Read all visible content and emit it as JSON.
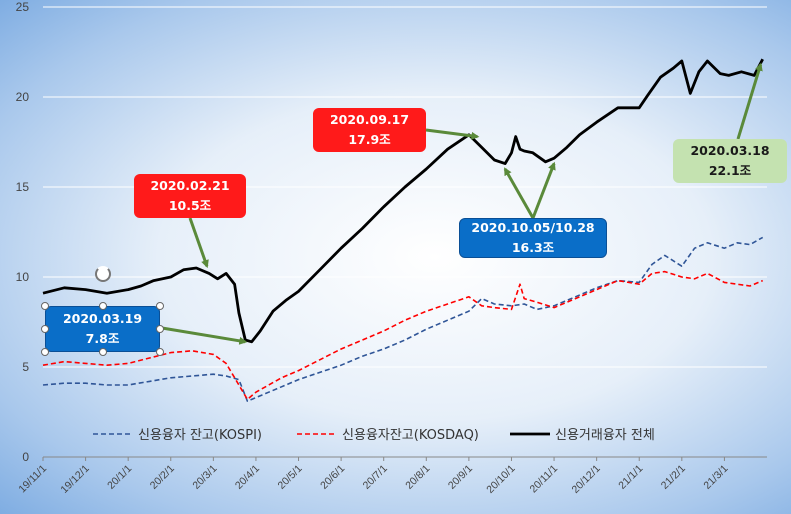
{
  "chart_data": {
    "type": "line",
    "ylim": [
      0,
      25
    ],
    "yticks": [
      0,
      5,
      10,
      15,
      20,
      25
    ],
    "xlim": [
      0,
      17
    ],
    "xtick_labels": [
      "19/11/1",
      "19/12/1",
      "20/1/1",
      "20/2/1",
      "20/3/1",
      "20/4/1",
      "20/5/1",
      "20/6/1",
      "20/7/1",
      "20/8/1",
      "20/9/1",
      "20/10/1",
      "20/11/1",
      "20/12/1",
      "21/1/1",
      "21/2/1",
      "21/3/1"
    ],
    "grid": true,
    "legend_position": "bottom",
    "series": [
      {
        "name": "신용융자 잔고(KOSPI)",
        "color": "#2f5597",
        "style": "dashed",
        "x": [
          0,
          0.5,
          1,
          1.5,
          2,
          2.5,
          3,
          3.5,
          4,
          4.3,
          4.6,
          4.8,
          5,
          5.3,
          5.6,
          6,
          6.5,
          7,
          7.5,
          8,
          8.5,
          9,
          9.5,
          10,
          10.3,
          10.6,
          11,
          11.3,
          11.6,
          12,
          12.5,
          13,
          13.5,
          14,
          14.3,
          14.6,
          15,
          15.3,
          15.6,
          16,
          16.3,
          16.6,
          16.9
        ],
        "values": [
          4.0,
          4.1,
          4.1,
          4.0,
          4.0,
          4.2,
          4.4,
          4.5,
          4.6,
          4.5,
          4.3,
          3.1,
          3.3,
          3.6,
          3.9,
          4.3,
          4.7,
          5.1,
          5.6,
          6.0,
          6.5,
          7.1,
          7.6,
          8.1,
          8.8,
          8.5,
          8.4,
          8.5,
          8.2,
          8.4,
          8.9,
          9.4,
          9.8,
          9.7,
          10.7,
          11.2,
          10.6,
          11.6,
          11.9,
          11.6,
          11.9,
          11.8,
          12.2
        ]
      },
      {
        "name": "신용융자잔고(KOSDAQ)",
        "color": "#ff0000",
        "style": "dashed",
        "x": [
          0,
          0.5,
          1,
          1.5,
          2,
          2.5,
          3,
          3.5,
          4,
          4.3,
          4.6,
          4.8,
          5,
          5.3,
          5.6,
          6,
          6.5,
          7,
          7.5,
          8,
          8.5,
          9,
          9.5,
          10,
          10.3,
          10.6,
          11,
          11.2,
          11.3,
          11.6,
          12,
          12.5,
          13,
          13.5,
          14,
          14.3,
          14.6,
          15,
          15.3,
          15.6,
          16,
          16.3,
          16.6,
          16.9
        ],
        "values": [
          5.1,
          5.3,
          5.2,
          5.1,
          5.2,
          5.5,
          5.8,
          5.9,
          5.7,
          5.2,
          4.0,
          3.2,
          3.6,
          4.0,
          4.4,
          4.8,
          5.4,
          6.0,
          6.5,
          7.0,
          7.6,
          8.1,
          8.5,
          8.9,
          8.4,
          8.3,
          8.2,
          9.6,
          8.8,
          8.6,
          8.3,
          8.8,
          9.3,
          9.8,
          9.6,
          10.2,
          10.3,
          10.0,
          9.9,
          10.2,
          9.7,
          9.6,
          9.5,
          9.8
        ]
      },
      {
        "name": "신용거래융자 전체",
        "color": "#000000",
        "style": "solid",
        "x": [
          0,
          0.5,
          1,
          1.5,
          2,
          2.3,
          2.6,
          3,
          3.3,
          3.6,
          3.9,
          4.1,
          4.3,
          4.5,
          4.6,
          4.75,
          4.9,
          5.1,
          5.4,
          5.7,
          6,
          6.5,
          7,
          7.5,
          8,
          8.5,
          9,
          9.5,
          10,
          10.3,
          10.6,
          10.85,
          11,
          11.1,
          11.2,
          11.3,
          11.5,
          11.8,
          12,
          12.3,
          12.6,
          13,
          13.5,
          14,
          14.2,
          14.5,
          14.8,
          15,
          15.2,
          15.4,
          15.6,
          15.9,
          16.1,
          16.4,
          16.7,
          16.9
        ],
        "values": [
          9.1,
          9.4,
          9.3,
          9.1,
          9.3,
          9.5,
          9.8,
          10.0,
          10.4,
          10.5,
          10.2,
          9.9,
          10.2,
          9.6,
          8.0,
          6.5,
          6.4,
          7.0,
          8.1,
          8.7,
          9.2,
          10.4,
          11.6,
          12.7,
          13.9,
          15.0,
          16.0,
          17.1,
          17.9,
          17.2,
          16.5,
          16.3,
          16.9,
          17.8,
          17.1,
          17.0,
          16.9,
          16.4,
          16.6,
          17.2,
          17.9,
          18.6,
          19.4,
          19.4,
          20.1,
          21.1,
          21.6,
          22.0,
          20.2,
          21.4,
          22.0,
          21.3,
          21.2,
          21.4,
          21.2,
          22.1
        ]
      }
    ],
    "annotations": [
      {
        "lines": [
          "2020.02.21",
          "10.5조"
        ],
        "style": "red"
      },
      {
        "lines": [
          "2020.03.19",
          "7.8조"
        ],
        "style": "blue"
      },
      {
        "lines": [
          "2020.09.17",
          "17.9조"
        ],
        "style": "red"
      },
      {
        "lines": [
          "2020.10.05/10.28",
          "16.3조"
        ],
        "style": "blue"
      },
      {
        "lines": [
          "2020.03.18",
          "22.1조"
        ],
        "style": "green"
      }
    ],
    "colors": {
      "arrow": "#5a8a3a",
      "grid": "#ffffff",
      "axis": "#888888"
    }
  }
}
